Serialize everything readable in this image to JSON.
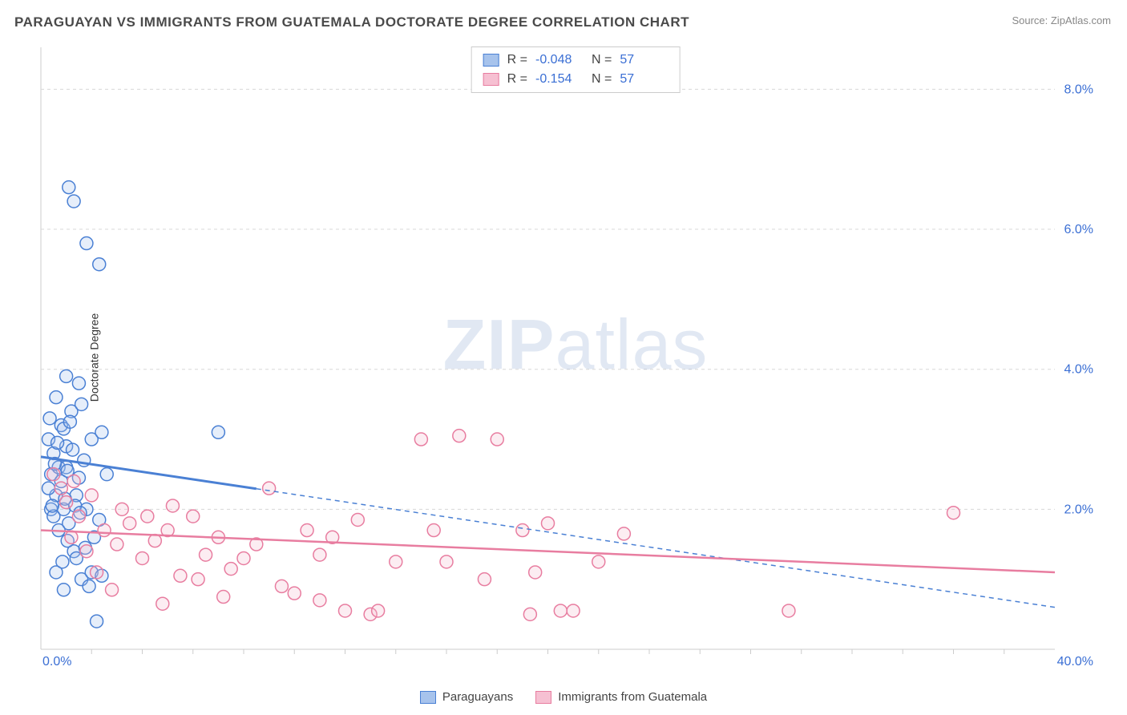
{
  "header": {
    "title": "PARAGUAYAN VS IMMIGRANTS FROM GUATEMALA DOCTORATE DEGREE CORRELATION CHART",
    "source_label": "Source: ZipAtlas.com"
  },
  "chart": {
    "type": "scatter",
    "ylabel": "Doctorate Degree",
    "watermark_bold": "ZIP",
    "watermark_rest": "atlas",
    "background_color": "#ffffff",
    "grid_color": "#d8d8d8",
    "grid_dash": "4,4",
    "axis_border_color": "#cccccc",
    "xlim": [
      0,
      40
    ],
    "ylim": [
      0,
      8.6
    ],
    "y_gridlines": [
      2,
      4,
      6,
      8
    ],
    "x_gridlines_minor": [
      2,
      4,
      6,
      8,
      10,
      12,
      14,
      16,
      18,
      20,
      22,
      24,
      26,
      28,
      30,
      32,
      34,
      36,
      38
    ],
    "x_axis_labels": [
      {
        "val": 0,
        "text": "0.0%",
        "align": "left"
      },
      {
        "val": 40,
        "text": "40.0%",
        "align": "right"
      }
    ],
    "y_axis_labels": [
      {
        "val": 2,
        "text": "2.0%"
      },
      {
        "val": 4,
        "text": "4.0%"
      },
      {
        "val": 6,
        "text": "6.0%"
      },
      {
        "val": 8,
        "text": "8.0%"
      }
    ],
    "marker_radius": 8,
    "marker_stroke_width": 1.5,
    "marker_fill_opacity": 0.28,
    "series": [
      {
        "key": "paraguayans",
        "label": "Paraguayans",
        "color_stroke": "#4a80d4",
        "color_fill": "#a7c3ec",
        "R": "-0.048",
        "N": "57",
        "trend": {
          "x1": 0,
          "y1": 2.75,
          "x2": 40,
          "y2": 0.6,
          "solid_until_x": 8.5,
          "width": 3
        },
        "points": [
          [
            0.3,
            3.0
          ],
          [
            0.4,
            2.5
          ],
          [
            0.5,
            2.8
          ],
          [
            0.6,
            2.2
          ],
          [
            0.7,
            2.6
          ],
          [
            0.8,
            3.2
          ],
          [
            0.9,
            2.0
          ],
          [
            1.0,
            2.6
          ],
          [
            1.1,
            1.8
          ],
          [
            1.2,
            3.4
          ],
          [
            1.3,
            1.4
          ],
          [
            1.4,
            2.2
          ],
          [
            1.5,
            3.8
          ],
          [
            1.6,
            1.0
          ],
          [
            1.1,
            6.6
          ],
          [
            1.3,
            6.4
          ],
          [
            1.8,
            5.8
          ],
          [
            2.3,
            5.5
          ],
          [
            1.0,
            3.9
          ],
          [
            0.7,
            1.7
          ],
          [
            0.9,
            0.85
          ],
          [
            2.0,
            1.1
          ],
          [
            2.2,
            0.4
          ],
          [
            2.4,
            1.05
          ],
          [
            2.6,
            2.5
          ],
          [
            2.0,
            3.0
          ],
          [
            2.4,
            3.1
          ],
          [
            1.6,
            3.5
          ],
          [
            0.6,
            3.6
          ],
          [
            0.4,
            2.0
          ],
          [
            1.8,
            2.0
          ],
          [
            0.5,
            1.9
          ],
          [
            1.4,
            1.3
          ],
          [
            2.1,
            1.6
          ],
          [
            0.8,
            2.4
          ],
          [
            0.3,
            2.3
          ],
          [
            1.0,
            2.9
          ],
          [
            1.7,
            2.7
          ],
          [
            0.6,
            1.1
          ],
          [
            1.9,
            0.9
          ],
          [
            1.5,
            2.45
          ],
          [
            0.35,
            3.3
          ],
          [
            1.05,
            1.55
          ],
          [
            7.0,
            3.1
          ],
          [
            1.25,
            2.85
          ],
          [
            0.55,
            2.65
          ],
          [
            0.9,
            3.15
          ],
          [
            0.45,
            2.05
          ],
          [
            1.35,
            2.05
          ],
          [
            0.65,
            2.95
          ],
          [
            1.15,
            3.25
          ],
          [
            1.75,
            1.45
          ],
          [
            0.85,
            1.25
          ],
          [
            2.3,
            1.85
          ],
          [
            0.95,
            2.15
          ],
          [
            1.55,
            1.95
          ],
          [
            1.05,
            2.55
          ]
        ]
      },
      {
        "key": "guatemala",
        "label": "Immigrants from Guatemala",
        "color_stroke": "#e87da0",
        "color_fill": "#f6c0d2",
        "R": "-0.154",
        "N": "57",
        "trend": {
          "x1": 0,
          "y1": 1.7,
          "x2": 40,
          "y2": 1.1,
          "solid_until_x": 40,
          "width": 2.5
        },
        "points": [
          [
            0.5,
            2.5
          ],
          [
            0.8,
            2.3
          ],
          [
            1.0,
            2.1
          ],
          [
            1.2,
            1.6
          ],
          [
            1.5,
            1.9
          ],
          [
            1.8,
            1.4
          ],
          [
            2.0,
            2.2
          ],
          [
            2.5,
            1.7
          ],
          [
            3.0,
            1.5
          ],
          [
            3.5,
            1.8
          ],
          [
            4.0,
            1.3
          ],
          [
            4.5,
            1.55
          ],
          [
            5.0,
            1.7
          ],
          [
            5.5,
            1.05
          ],
          [
            6.0,
            1.9
          ],
          [
            6.5,
            1.35
          ],
          [
            7.0,
            1.6
          ],
          [
            7.5,
            1.15
          ],
          [
            8.5,
            1.5
          ],
          [
            9.0,
            2.3
          ],
          [
            9.5,
            0.9
          ],
          [
            10.0,
            0.8
          ],
          [
            10.5,
            1.7
          ],
          [
            11.5,
            1.6
          ],
          [
            12.0,
            0.55
          ],
          [
            12.5,
            1.85
          ],
          [
            13.0,
            0.5
          ],
          [
            13.3,
            0.55
          ],
          [
            14.0,
            1.25
          ],
          [
            15.0,
            3.0
          ],
          [
            15.5,
            1.7
          ],
          [
            16.0,
            1.25
          ],
          [
            16.5,
            3.05
          ],
          [
            17.5,
            1.0
          ],
          [
            18.0,
            3.0
          ],
          [
            19.0,
            1.7
          ],
          [
            19.5,
            1.1
          ],
          [
            19.3,
            0.5
          ],
          [
            20.5,
            0.55
          ],
          [
            21.0,
            0.55
          ],
          [
            20.0,
            1.8
          ],
          [
            22.0,
            1.25
          ],
          [
            23.0,
            1.65
          ],
          [
            29.5,
            0.55
          ],
          [
            36.0,
            1.95
          ],
          [
            1.3,
            2.4
          ],
          [
            2.2,
            1.1
          ],
          [
            3.2,
            2.0
          ],
          [
            4.2,
            1.9
          ],
          [
            5.2,
            2.05
          ],
          [
            6.2,
            1.0
          ],
          [
            8.0,
            1.3
          ],
          [
            11.0,
            0.7
          ],
          [
            11.0,
            1.35
          ],
          [
            2.8,
            0.85
          ],
          [
            4.8,
            0.65
          ],
          [
            7.2,
            0.75
          ]
        ]
      }
    ]
  },
  "stats_box": {
    "r_prefix": "R =",
    "n_prefix": "N ="
  },
  "legend": {
    "items": [
      {
        "key": "paraguayans"
      },
      {
        "key": "guatemala"
      }
    ]
  }
}
